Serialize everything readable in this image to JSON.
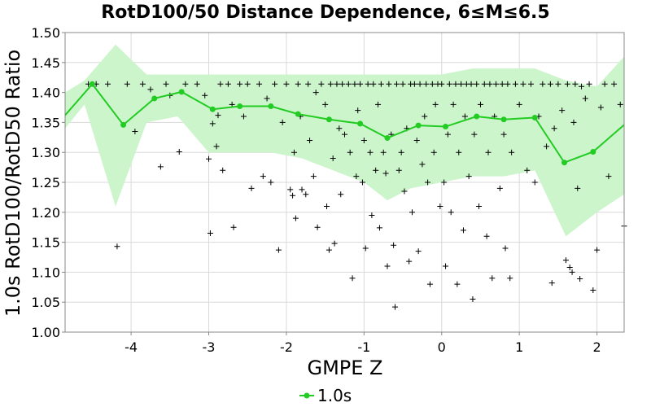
{
  "chart_data": {
    "type": "scatter",
    "title": "RotD100/50 Distance Dependence, 6≤M≤6.5",
    "xlabel": "GMPE Z",
    "ylabel": "1.0s RotD100/RotD50 Ratio",
    "xlim": [
      -4.85,
      2.35
    ],
    "ylim": [
      1.0,
      1.5
    ],
    "x_ticks": [
      -4,
      -3,
      -2,
      -1,
      0,
      1,
      2
    ],
    "y_ticks": [
      1.0,
      1.05,
      1.1,
      1.15,
      1.2,
      1.25,
      1.3,
      1.35,
      1.4,
      1.45,
      1.5
    ],
    "grid": true,
    "legend_position": "bottom-center",
    "colors": {
      "line": "#22cc22",
      "band": "#ccf5cc",
      "points": "#000000",
      "grid": "#d9d9d9"
    },
    "band": {
      "x": [
        -4.85,
        -4.6,
        -4.2,
        -3.8,
        -3.4,
        -3.0,
        -2.6,
        -2.2,
        -1.8,
        -1.4,
        -1.0,
        -0.7,
        -0.4,
        0.0,
        0.4,
        0.8,
        1.2,
        1.6,
        2.0,
        2.35
      ],
      "upper": [
        1.4,
        1.42,
        1.48,
        1.43,
        1.43,
        1.43,
        1.43,
        1.43,
        1.43,
        1.43,
        1.43,
        1.43,
        1.43,
        1.43,
        1.44,
        1.44,
        1.44,
        1.42,
        1.41,
        1.46
      ],
      "lower": [
        1.34,
        1.38,
        1.21,
        1.35,
        1.36,
        1.3,
        1.3,
        1.3,
        1.29,
        1.27,
        1.25,
        1.22,
        1.24,
        1.25,
        1.26,
        1.26,
        1.27,
        1.16,
        1.2,
        1.23
      ]
    },
    "series": [
      {
        "name": "1.0s",
        "x": [
          -4.85,
          -4.5,
          -4.1,
          -3.7,
          -3.35,
          -2.95,
          -2.6,
          -2.2,
          -1.85,
          -1.45,
          -1.05,
          -0.7,
          -0.3,
          0.05,
          0.45,
          0.8,
          1.2,
          1.58,
          1.95,
          2.35
        ],
        "y": [
          1.362,
          1.414,
          1.346,
          1.39,
          1.401,
          1.372,
          1.377,
          1.377,
          1.364,
          1.355,
          1.348,
          1.324,
          1.345,
          1.343,
          1.36,
          1.355,
          1.358,
          1.283,
          1.301,
          1.346
        ]
      }
    ],
    "scatter_points": [
      [
        -4.55,
        1.414
      ],
      [
        -4.45,
        1.414
      ],
      [
        -4.3,
        1.414
      ],
      [
        -4.18,
        1.143
      ],
      [
        -4.05,
        1.414
      ],
      [
        -3.95,
        1.335
      ],
      [
        -3.85,
        1.414
      ],
      [
        -3.75,
        1.405
      ],
      [
        -3.62,
        1.276
      ],
      [
        -3.55,
        1.414
      ],
      [
        -3.5,
        1.395
      ],
      [
        -3.38,
        1.301
      ],
      [
        -3.3,
        1.414
      ],
      [
        -3.15,
        1.414
      ],
      [
        -3.05,
        1.395
      ],
      [
        -3.0,
        1.289
      ],
      [
        -2.98,
        1.165
      ],
      [
        -2.95,
        1.348
      ],
      [
        -2.9,
        1.31
      ],
      [
        -2.88,
        1.362
      ],
      [
        -2.85,
        1.414
      ],
      [
        -2.82,
        1.27
      ],
      [
        -2.75,
        1.414
      ],
      [
        -2.7,
        1.38
      ],
      [
        -2.68,
        1.175
      ],
      [
        -2.6,
        1.414
      ],
      [
        -2.55,
        1.36
      ],
      [
        -2.5,
        1.414
      ],
      [
        -2.45,
        1.24
      ],
      [
        -2.35,
        1.414
      ],
      [
        -2.3,
        1.26
      ],
      [
        -2.25,
        1.39
      ],
      [
        -2.2,
        1.25
      ],
      [
        -2.15,
        1.414
      ],
      [
        -2.1,
        1.137
      ],
      [
        -2.05,
        1.35
      ],
      [
        -2.0,
        1.414
      ],
      [
        -1.95,
        1.238
      ],
      [
        -1.92,
        1.228
      ],
      [
        -1.9,
        1.3
      ],
      [
        -1.88,
        1.19
      ],
      [
        -1.85,
        1.414
      ],
      [
        -1.82,
        1.36
      ],
      [
        -1.8,
        1.238
      ],
      [
        -1.75,
        1.23
      ],
      [
        -1.72,
        1.414
      ],
      [
        -1.7,
        1.32
      ],
      [
        -1.65,
        1.26
      ],
      [
        -1.62,
        1.4
      ],
      [
        -1.6,
        1.175
      ],
      [
        -1.55,
        1.414
      ],
      [
        -1.5,
        1.38
      ],
      [
        -1.48,
        1.21
      ],
      [
        -1.45,
        1.137
      ],
      [
        -1.43,
        1.414
      ],
      [
        -1.4,
        1.29
      ],
      [
        -1.38,
        1.148
      ],
      [
        -1.35,
        1.414
      ],
      [
        -1.32,
        1.34
      ],
      [
        -1.3,
        1.23
      ],
      [
        -1.28,
        1.414
      ],
      [
        -1.25,
        1.33
      ],
      [
        -1.2,
        1.414
      ],
      [
        -1.18,
        1.3
      ],
      [
        -1.15,
        1.09
      ],
      [
        -1.12,
        1.414
      ],
      [
        -1.1,
        1.26
      ],
      [
        -1.08,
        1.37
      ],
      [
        -1.05,
        1.414
      ],
      [
        -1.02,
        1.25
      ],
      [
        -1.0,
        1.32
      ],
      [
        -0.98,
        1.14
      ],
      [
        -0.95,
        1.414
      ],
      [
        -0.92,
        1.3
      ],
      [
        -0.9,
        1.195
      ],
      [
        -0.88,
        1.414
      ],
      [
        -0.85,
        1.27
      ],
      [
        -0.82,
        1.38
      ],
      [
        -0.8,
        1.174
      ],
      [
        -0.78,
        1.414
      ],
      [
        -0.75,
        1.3
      ],
      [
        -0.72,
        1.265
      ],
      [
        -0.7,
        1.11
      ],
      [
        -0.68,
        1.414
      ],
      [
        -0.65,
        1.33
      ],
      [
        -0.62,
        1.145
      ],
      [
        -0.6,
        1.042
      ],
      [
        -0.58,
        1.414
      ],
      [
        -0.55,
        1.27
      ],
      [
        -0.52,
        1.3
      ],
      [
        -0.5,
        1.414
      ],
      [
        -0.48,
        1.235
      ],
      [
        -0.45,
        1.34
      ],
      [
        -0.42,
        1.118
      ],
      [
        -0.4,
        1.414
      ],
      [
        -0.38,
        1.2
      ],
      [
        -0.35,
        1.414
      ],
      [
        -0.32,
        1.32
      ],
      [
        -0.3,
        1.135
      ],
      [
        -0.28,
        1.414
      ],
      [
        -0.25,
        1.28
      ],
      [
        -0.22,
        1.36
      ],
      [
        -0.2,
        1.414
      ],
      [
        -0.18,
        1.25
      ],
      [
        -0.15,
        1.08
      ],
      [
        -0.12,
        1.414
      ],
      [
        -0.1,
        1.3
      ],
      [
        -0.08,
        1.38
      ],
      [
        -0.05,
        1.414
      ],
      [
        -0.02,
        1.21
      ],
      [
        0.0,
        1.414
      ],
      [
        0.03,
        1.25
      ],
      [
        0.05,
        1.11
      ],
      [
        0.08,
        1.33
      ],
      [
        0.1,
        1.414
      ],
      [
        0.12,
        1.2
      ],
      [
        0.15,
        1.38
      ],
      [
        0.18,
        1.414
      ],
      [
        0.2,
        1.08
      ],
      [
        0.22,
        1.3
      ],
      [
        0.25,
        1.414
      ],
      [
        0.28,
        1.17
      ],
      [
        0.3,
        1.36
      ],
      [
        0.32,
        1.414
      ],
      [
        0.35,
        1.26
      ],
      [
        0.38,
        1.414
      ],
      [
        0.4,
        1.055
      ],
      [
        0.42,
        1.33
      ],
      [
        0.45,
        1.414
      ],
      [
        0.48,
        1.21
      ],
      [
        0.5,
        1.38
      ],
      [
        0.55,
        1.414
      ],
      [
        0.58,
        1.16
      ],
      [
        0.6,
        1.3
      ],
      [
        0.62,
        1.414
      ],
      [
        0.65,
        1.09
      ],
      [
        0.68,
        1.36
      ],
      [
        0.7,
        1.414
      ],
      [
        0.75,
        1.24
      ],
      [
        0.78,
        1.414
      ],
      [
        0.8,
        1.33
      ],
      [
        0.82,
        1.14
      ],
      [
        0.85,
        1.414
      ],
      [
        0.88,
        1.09
      ],
      [
        0.9,
        1.3
      ],
      [
        0.95,
        1.414
      ],
      [
        1.0,
        1.38
      ],
      [
        1.05,
        1.414
      ],
      [
        1.1,
        1.27
      ],
      [
        1.15,
        1.414
      ],
      [
        1.2,
        1.25
      ],
      [
        1.25,
        1.36
      ],
      [
        1.3,
        1.414
      ],
      [
        1.35,
        1.31
      ],
      [
        1.4,
        1.414
      ],
      [
        1.42,
        1.082
      ],
      [
        1.45,
        1.34
      ],
      [
        1.5,
        1.414
      ],
      [
        1.55,
        1.37
      ],
      [
        1.6,
        1.12
      ],
      [
        1.62,
        1.414
      ],
      [
        1.65,
        1.108
      ],
      [
        1.68,
        1.1
      ],
      [
        1.7,
        1.35
      ],
      [
        1.72,
        1.414
      ],
      [
        1.75,
        1.24
      ],
      [
        1.78,
        1.089
      ],
      [
        1.8,
        1.41
      ],
      [
        1.85,
        1.39
      ],
      [
        1.9,
        1.414
      ],
      [
        1.95,
        1.07
      ],
      [
        2.0,
        1.137
      ],
      [
        2.05,
        1.375
      ],
      [
        2.1,
        1.414
      ],
      [
        2.15,
        1.26
      ],
      [
        2.22,
        1.414
      ],
      [
        2.3,
        1.38
      ],
      [
        2.35,
        1.177
      ]
    ]
  },
  "legend": {
    "label": "1.0s"
  }
}
